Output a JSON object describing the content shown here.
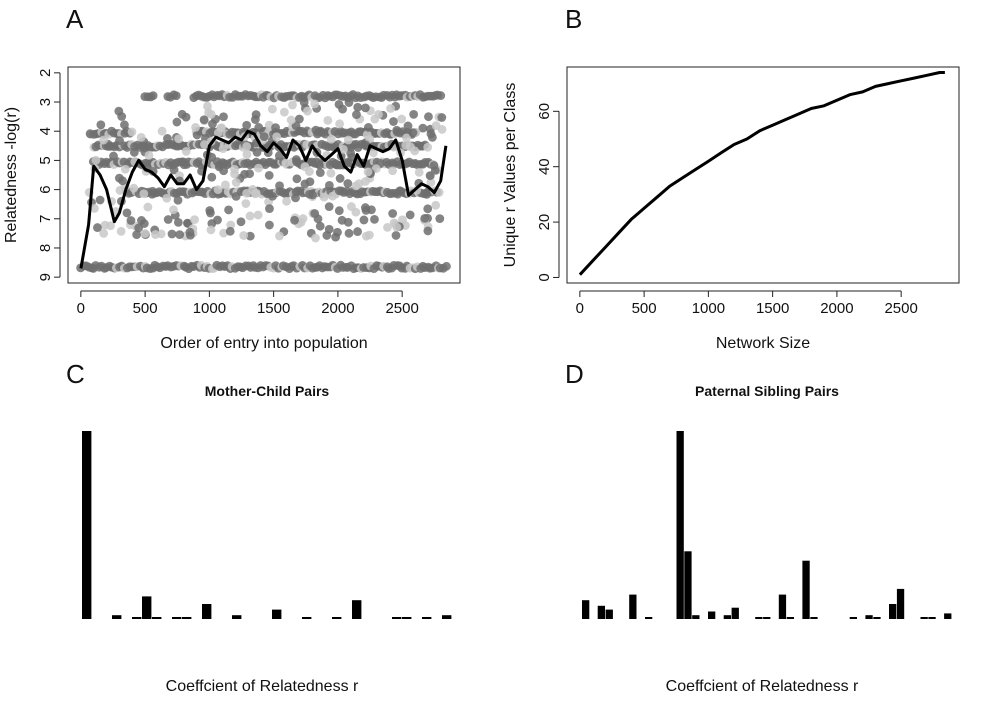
{
  "chart_data": [
    {
      "panel": "A",
      "type": "scatter",
      "title": "",
      "xlabel": "Order of entry into population",
      "ylabel": "Relatedness -log(r)",
      "xlim": [
        -100,
        2950
      ],
      "ylim": [
        1.8,
        9.2
      ],
      "y_reversed": true,
      "xticks": [
        0,
        500,
        1000,
        1500,
        2000,
        2500
      ],
      "yticks": [
        2,
        3,
        4,
        5,
        6,
        7,
        8,
        9
      ],
      "grid": false,
      "point_color": "#6e6e6e",
      "light_point_color": "#c8c8c8",
      "point_bands": [
        {
          "y": 2.8,
          "x_ranges": [
            [
              500,
              560
            ],
            [
              680,
              750
            ],
            [
              880,
              2800
            ]
          ]
        },
        {
          "y": 4.05,
          "x_ranges": [
            [
              80,
              400
            ],
            [
              900,
              2600
            ]
          ]
        },
        {
          "y": 4.5,
          "x_ranges": [
            [
              100,
              2700
            ]
          ]
        },
        {
          "y": 5.1,
          "x_ranges": [
            [
              100,
              2750
            ]
          ]
        },
        {
          "y": 6.1,
          "x_ranges": [
            [
              350,
              2800
            ]
          ]
        },
        {
          "y": 8.65,
          "x_ranges": [
            [
              0,
              2850
            ]
          ]
        }
      ],
      "smooth_line": {
        "x": [
          0,
          60,
          100,
          150,
          200,
          260,
          300,
          350,
          400,
          450,
          500,
          550,
          600,
          650,
          700,
          750,
          800,
          850,
          900,
          950,
          1000,
          1050,
          1100,
          1150,
          1200,
          1250,
          1300,
          1350,
          1400,
          1450,
          1500,
          1550,
          1600,
          1650,
          1700,
          1750,
          1800,
          1850,
          1900,
          1950,
          2000,
          2050,
          2100,
          2150,
          2200,
          2250,
          2300,
          2350,
          2400,
          2450,
          2500,
          2550,
          2600,
          2650,
          2700,
          2750,
          2800,
          2840
        ],
        "y": [
          8.7,
          7.2,
          5.2,
          5.5,
          6.0,
          7.1,
          6.8,
          6.0,
          5.4,
          5.0,
          5.3,
          5.4,
          5.6,
          5.9,
          5.5,
          5.8,
          5.8,
          5.5,
          6.0,
          5.7,
          4.5,
          4.2,
          4.3,
          4.4,
          4.2,
          4.3,
          4.0,
          4.1,
          4.5,
          4.7,
          4.4,
          4.6,
          4.9,
          4.3,
          4.5,
          5.0,
          4.5,
          4.8,
          5.0,
          4.8,
          4.6,
          5.2,
          5.4,
          4.8,
          5.2,
          4.5,
          4.6,
          4.7,
          4.6,
          4.3,
          5.0,
          6.2,
          6.0,
          5.8,
          5.9,
          6.1,
          5.7,
          4.5
        ]
      }
    },
    {
      "panel": "B",
      "type": "line",
      "title": "",
      "xlabel": "Network Size",
      "ylabel": "Unique r Values per Class",
      "xlim": [
        -100,
        2950
      ],
      "ylim": [
        -2,
        76
      ],
      "xticks": [
        0,
        500,
        1000,
        1500,
        2000,
        2500
      ],
      "yticks": [
        0,
        20,
        40,
        60
      ],
      "grid": false,
      "x": [
        0,
        100,
        200,
        300,
        400,
        500,
        600,
        700,
        800,
        900,
        1000,
        1100,
        1200,
        1300,
        1400,
        1500,
        1600,
        1700,
        1800,
        1900,
        2000,
        2100,
        2200,
        2300,
        2400,
        2500,
        2600,
        2700,
        2800,
        2840
      ],
      "y": [
        1,
        6,
        11,
        16,
        21,
        25,
        29,
        33,
        36,
        39,
        42,
        45,
        48,
        50,
        53,
        55,
        57,
        59,
        61,
        62,
        64,
        66,
        67,
        69,
        70,
        71,
        72,
        73,
        74,
        74
      ]
    },
    {
      "panel": "C",
      "type": "bar",
      "title": "Mother-Child Pairs",
      "xlabel": "Coeffcient of Relatedness r",
      "ylabel": "",
      "grid": false,
      "values": [
        100,
        0,
        0,
        2,
        0,
        1,
        12,
        1,
        0,
        1,
        1,
        0,
        8,
        0,
        0,
        2,
        0,
        0,
        0,
        5,
        0,
        0,
        1,
        0,
        0,
        1,
        0,
        10,
        0,
        0,
        0,
        1,
        1,
        0,
        1,
        0,
        2
      ]
    },
    {
      "panel": "D",
      "type": "bar",
      "title": "Paternal Sibling Pairs",
      "xlabel": "Coeffcient of Relatedness r",
      "ylabel": "",
      "grid": false,
      "values": [
        10,
        0,
        7,
        5,
        0,
        0,
        13,
        0,
        1,
        0,
        0,
        0,
        100,
        36,
        2,
        0,
        4,
        0,
        2,
        6,
        0,
        0,
        1,
        1,
        0,
        13,
        1,
        0,
        31,
        1,
        0,
        0,
        0,
        0,
        1,
        0,
        2,
        1,
        0,
        8,
        16,
        0,
        0,
        1,
        1,
        0,
        3
      ]
    }
  ]
}
